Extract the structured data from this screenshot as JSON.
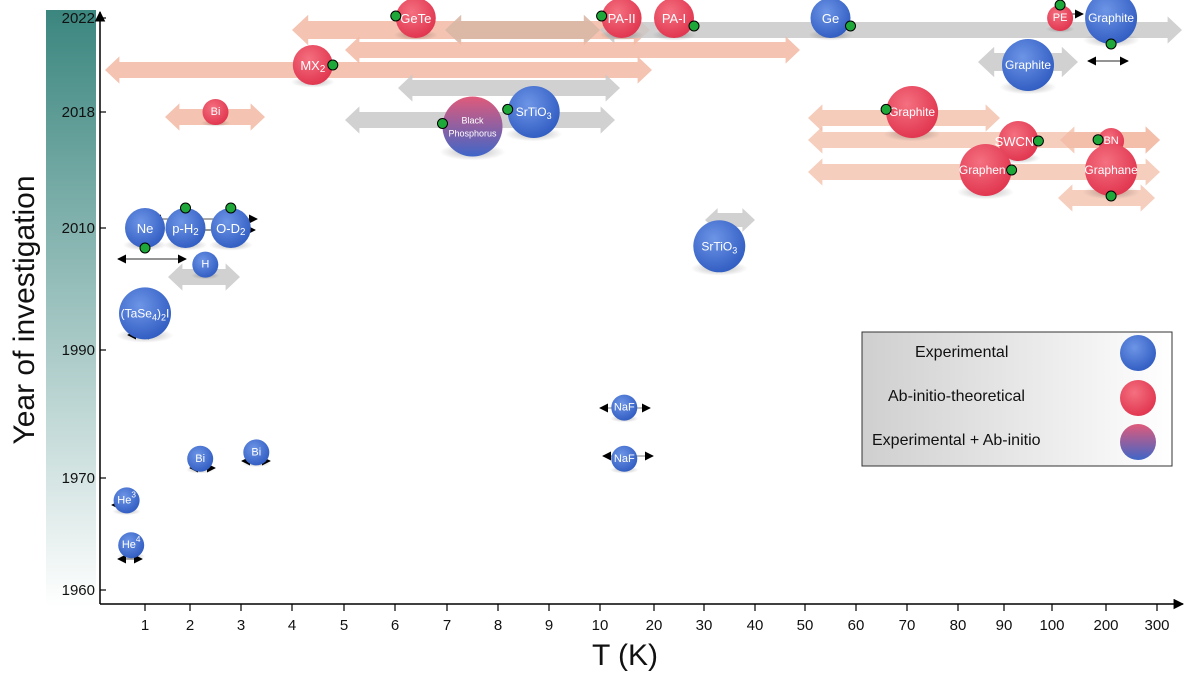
{
  "chart_data": {
    "type": "scatter",
    "xlabel": "T (K)",
    "ylabel": "Year of investigation",
    "x_ticks": [
      "1",
      "2",
      "3",
      "4",
      "5",
      "6",
      "7",
      "8",
      "9",
      "10",
      "20",
      "30",
      "40",
      "50",
      "60",
      "70",
      "80",
      "90",
      "100",
      "200",
      "300"
    ],
    "y_ticks": [
      "1960",
      "1970",
      "1990",
      "2010",
      "2018",
      "2022"
    ],
    "legend": {
      "placement": "right",
      "entries": [
        {
          "label": "Experimental",
          "category": "experimental"
        },
        {
          "label": "Ab-initio-theoretical",
          "category": "theoretical"
        },
        {
          "label": "Experimental + Ab-initio",
          "category": "both"
        }
      ]
    },
    "colors": {
      "experimental": "#3f6fd1",
      "theoretical": "#ea4a60",
      "both": "#7d5aa5",
      "marker": "#1fa83a",
      "axis_band_top": "#3f8a82",
      "arrow_theory": "#f2b9a3",
      "arrow_exp": "#c9c9c9"
    },
    "points": [
      {
        "label": "He",
        "sup": "4",
        "x": 0.7,
        "year": 1964,
        "category": "experimental",
        "size": "small"
      },
      {
        "label": "He",
        "sup": "3",
        "x": 0.6,
        "year": 1968,
        "category": "experimental",
        "size": "small"
      },
      {
        "label": "Bi",
        "x": 2.2,
        "year": 1973,
        "category": "experimental",
        "size": "small"
      },
      {
        "label": "Bi",
        "x": 3.3,
        "year": 1974,
        "category": "experimental",
        "size": "small"
      },
      {
        "label": "NaF",
        "x": 14.5,
        "year": 1973,
        "category": "experimental",
        "size": "small"
      },
      {
        "label": "NaF",
        "x": 14.5,
        "year": 1981,
        "category": "experimental",
        "size": "small"
      },
      {
        "label": "(TaSe4)2I",
        "x": 1.0,
        "year": 1996,
        "category": "experimental",
        "size": "large"
      },
      {
        "label": "H",
        "x": 2.3,
        "year": 2004,
        "category": "experimental",
        "size": "small"
      },
      {
        "label": "Ne",
        "x": 1.0,
        "year": 2010,
        "category": "experimental",
        "size": "medium"
      },
      {
        "label": "p-H2",
        "x": 1.9,
        "year": 2010,
        "category": "experimental",
        "size": "medium"
      },
      {
        "label": "O-D2",
        "x": 2.8,
        "year": 2010,
        "category": "experimental",
        "size": "medium"
      },
      {
        "label": "SrTiO3",
        "x": 33,
        "year": 2007,
        "category": "experimental",
        "size": "large"
      },
      {
        "label": "Bi",
        "x": 2.5,
        "year": 2018,
        "category": "theoretical",
        "size": "small"
      },
      {
        "label": "Black Phosphorus",
        "x": 7.5,
        "year": 2017,
        "category": "both",
        "size": "xlarge"
      },
      {
        "label": "SrTiO3",
        "x": 8.7,
        "year": 2018,
        "category": "experimental",
        "size": "large"
      },
      {
        "label": "MX2",
        "x": 4.4,
        "year": 2020,
        "category": "theoretical",
        "size": "medium"
      },
      {
        "label": "GeTe",
        "x": 6.4,
        "year": 2022,
        "category": "theoretical",
        "size": "medium"
      },
      {
        "label": "PA-II",
        "x": 14,
        "year": 2022,
        "category": "theoretical",
        "size": "medium"
      },
      {
        "label": "PA-I",
        "x": 24,
        "year": 2022,
        "category": "theoretical",
        "size": "medium"
      },
      {
        "label": "Ge",
        "x": 55,
        "year": 2022,
        "category": "experimental",
        "size": "medium"
      },
      {
        "label": "PE",
        "x": 115,
        "year": 2022,
        "category": "theoretical",
        "size": "small"
      },
      {
        "label": "Graphite",
        "x": 210,
        "year": 2022,
        "category": "experimental",
        "size": "large"
      },
      {
        "label": "Graphite",
        "x": 95,
        "year": 2020,
        "category": "experimental",
        "size": "large"
      },
      {
        "label": "Graphite",
        "x": 71,
        "year": 2018,
        "category": "theoretical",
        "size": "large"
      },
      {
        "label": "SWCNT",
        "x": 93,
        "year": 2016,
        "category": "theoretical",
        "size": "medium"
      },
      {
        "label": "BN",
        "x": 210,
        "year": 2016,
        "category": "theoretical",
        "size": "small"
      },
      {
        "label": "Graphene",
        "x": 86,
        "year": 2014,
        "category": "theoretical",
        "size": "large"
      },
      {
        "label": "Graphane",
        "x": 210,
        "year": 2014,
        "category": "theoretical",
        "size": "large"
      }
    ]
  }
}
